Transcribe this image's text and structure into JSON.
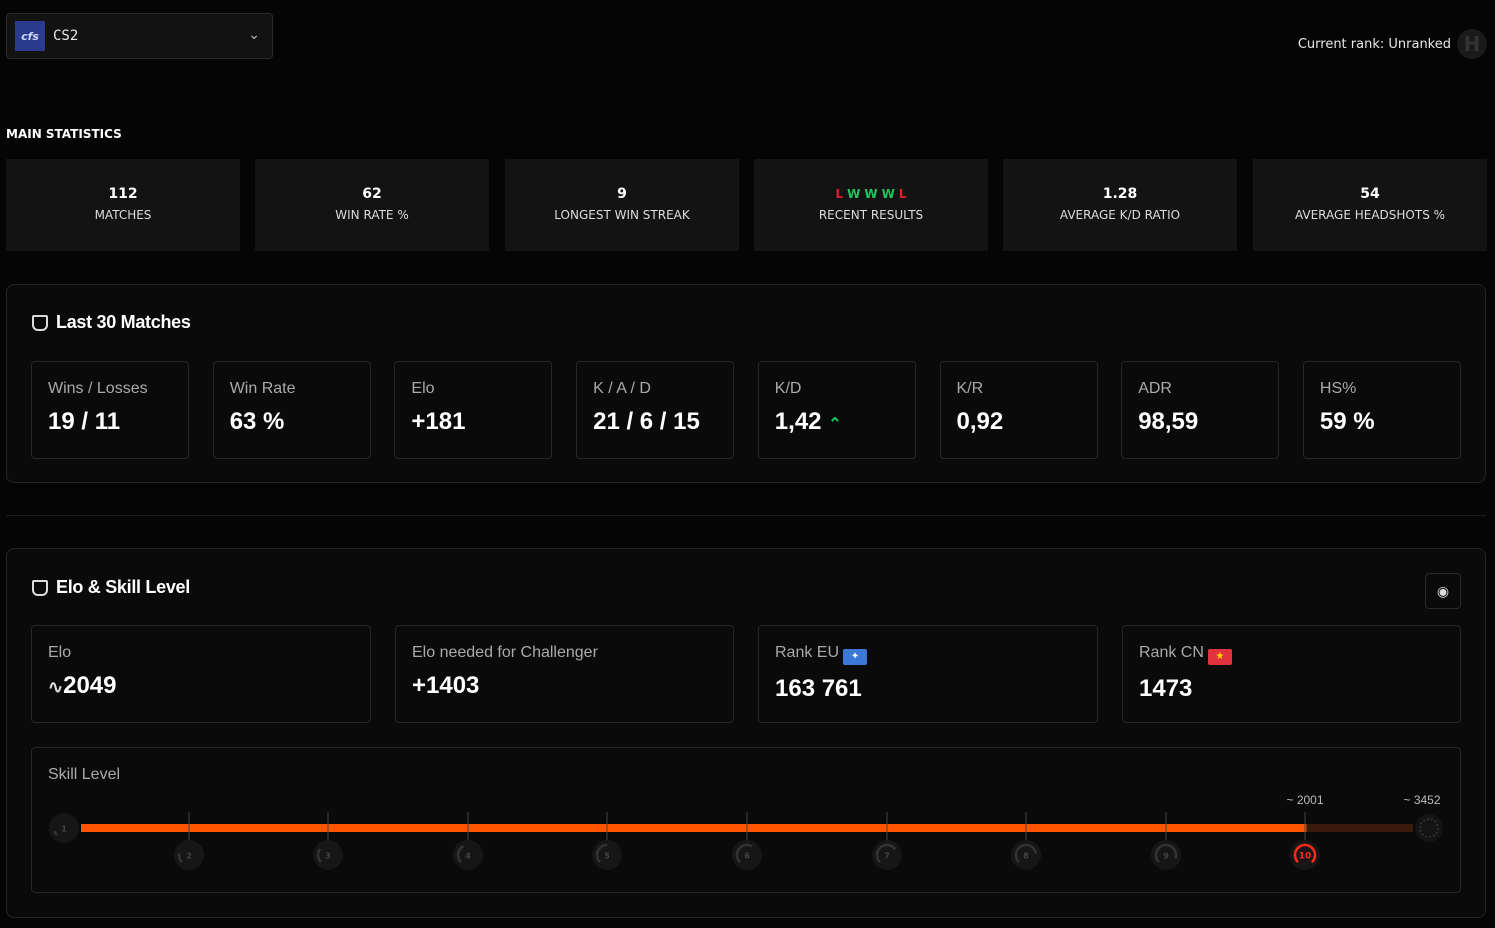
{
  "header": {
    "game_logo": "cfs",
    "game": "CS2",
    "rank_label": "Current rank: Unranked"
  },
  "main_statistics": {
    "title": "MAIN STATISTICS",
    "cards": [
      {
        "value": "112",
        "label": "MATCHES"
      },
      {
        "value": "62",
        "label": "WIN RATE %"
      },
      {
        "value": "9",
        "label": "LONGEST WIN STREAK"
      },
      {
        "value": "",
        "label": "RECENT RESULTS",
        "results": [
          "L",
          "W",
          "W",
          "W",
          "L"
        ]
      },
      {
        "value": "1.28",
        "label": "AVERAGE K/D RATIO"
      },
      {
        "value": "54",
        "label": "AVERAGE HEADSHOTS %"
      }
    ]
  },
  "colors": {
    "win": "#22c55e",
    "loss": "#e11d2e",
    "accent": "#ff5500",
    "level10": "#ff2a1a"
  },
  "last30": {
    "title": "Last 30 Matches",
    "cards": [
      {
        "label": "Wins / Losses",
        "value": "19 / 11"
      },
      {
        "label": "Win Rate",
        "value": "63 %"
      },
      {
        "label": "Elo",
        "value": "+181"
      },
      {
        "label": "K / A / D",
        "value": "21 / 6 / 15"
      },
      {
        "label": "K/D",
        "value": "1,42",
        "trend": "up"
      },
      {
        "label": "K/R",
        "value": "0,92"
      },
      {
        "label": "ADR",
        "value": "98,59"
      },
      {
        "label": "HS%",
        "value": "59 %"
      }
    ]
  },
  "elo": {
    "title": "Elo & Skill Level",
    "cards": [
      {
        "label": "Elo",
        "value": "2049"
      },
      {
        "label": "Elo needed for Challenger",
        "value": "+1403"
      },
      {
        "label": "Rank EU",
        "value": "163 761"
      },
      {
        "label": "Rank CN",
        "value": "1473"
      }
    ],
    "skill": {
      "label": "Skill Level",
      "current_level": 10,
      "levels": [
        "1",
        "2",
        "3",
        "4",
        "5",
        "6",
        "7",
        "8",
        "9",
        "10"
      ],
      "level10_elo": "2001",
      "challenger_elo": "3452",
      "progress_fraction": 0.92
    }
  }
}
